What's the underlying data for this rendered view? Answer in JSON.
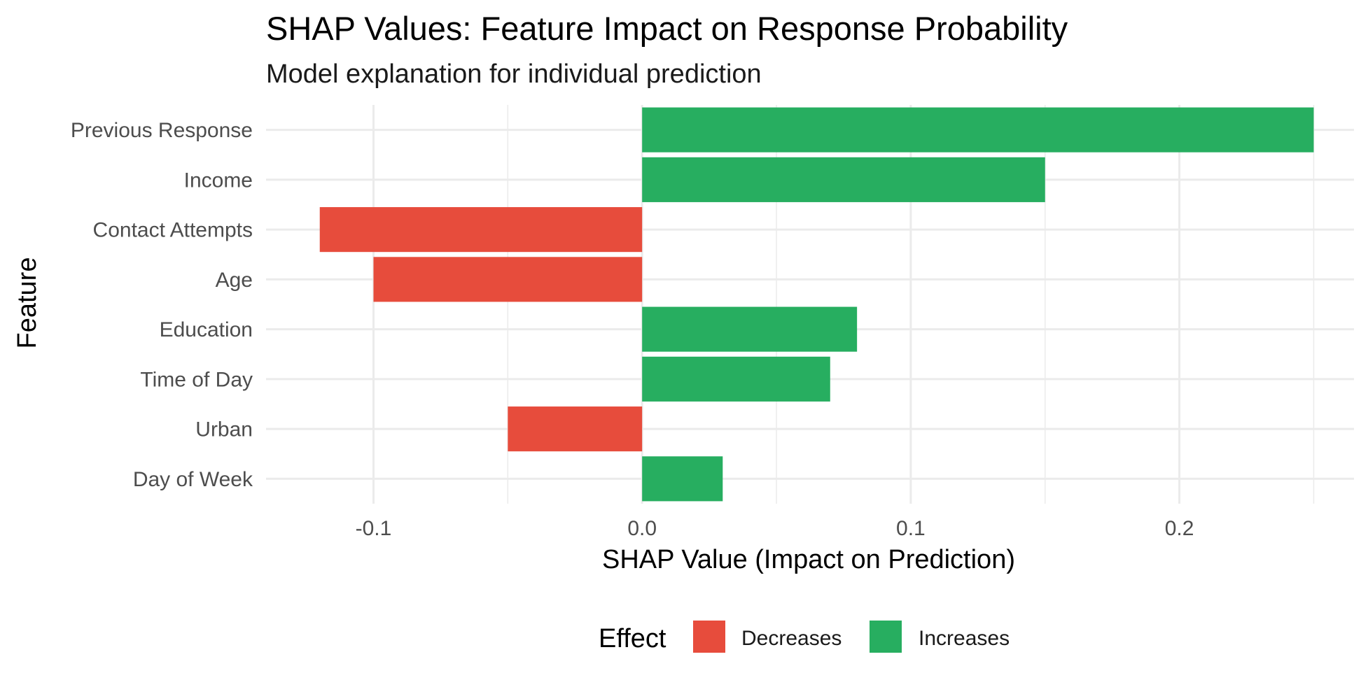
{
  "chart_data": {
    "type": "bar",
    "orientation": "horizontal",
    "title": "SHAP Values: Feature Impact on Response Probability",
    "subtitle": "Model explanation for individual prediction",
    "xlabel": "SHAP Value (Impact on Prediction)",
    "ylabel": "Feature",
    "categories": [
      "Previous Response",
      "Income",
      "Contact Attempts",
      "Age",
      "Education",
      "Time of Day",
      "Urban",
      "Day of Week"
    ],
    "values": [
      0.25,
      0.15,
      -0.12,
      -0.1,
      0.08,
      0.07,
      -0.05,
      0.03
    ],
    "effects": [
      "Increases",
      "Increases",
      "Decreases",
      "Decreases",
      "Increases",
      "Increases",
      "Decreases",
      "Increases"
    ],
    "xlim": [
      -0.14,
      0.265
    ],
    "x_ticks": [
      -0.1,
      0.0,
      0.1,
      0.2
    ],
    "x_tick_labels": [
      "-0.1",
      "0.0",
      "0.1",
      "0.2"
    ],
    "x_minor_ticks": [
      -0.05,
      0.05,
      0.15,
      0.25
    ],
    "grid": true,
    "legend": {
      "title": "Effect",
      "position": "bottom",
      "entries": [
        {
          "label": "Decreases",
          "color": "#e74c3c"
        },
        {
          "label": "Increases",
          "color": "#27ae60"
        }
      ]
    }
  }
}
